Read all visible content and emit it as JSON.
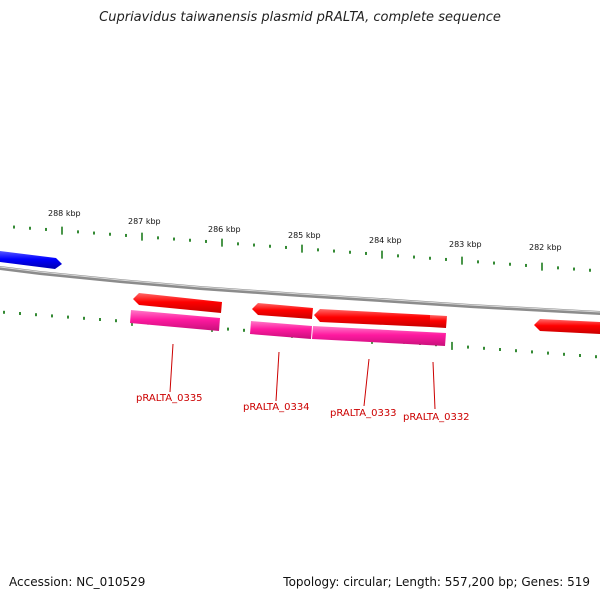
{
  "title": "Cupriavidus taiwanensis plasmid pRALTA, complete sequence",
  "scale_labels": [
    "288 kbp",
    "287 kbp",
    "286 kbp",
    "285 kbp",
    "284 kbp",
    "283 kbp",
    "282 kbp"
  ],
  "genes": [
    {
      "label": "pRALTA_0335"
    },
    {
      "label": "pRALTA_0334"
    },
    {
      "label": "pRALTA_0333"
    },
    {
      "label": "pRALTA_0332"
    }
  ],
  "footer": {
    "accession": "Accession: NC_010529",
    "summary": "Topology: circular; Length: 557,200 bp; Genes: 519"
  },
  "colors": {
    "backbone": "#8c8c8c",
    "forward_cds": "#0000ff",
    "reverse_cds": "#ff0000",
    "reverse_gene": "#ff1493",
    "tick": "#1e7d1e",
    "label": "#cc0000"
  }
}
